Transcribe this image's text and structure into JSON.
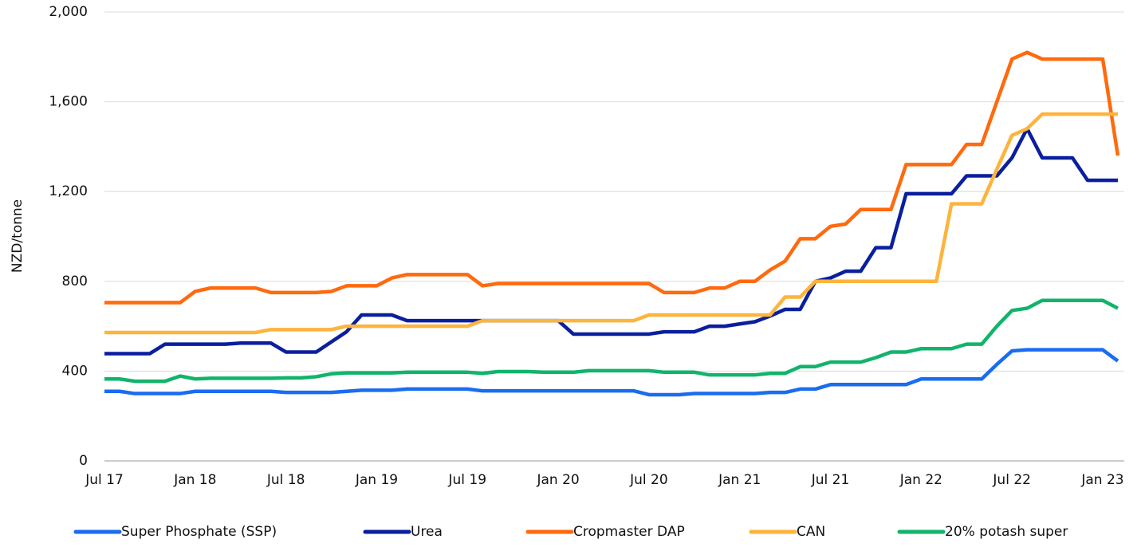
{
  "chart_data": {
    "type": "line",
    "y_label": "NZD/tonne",
    "categories": [
      "Jul 17",
      null,
      null,
      null,
      null,
      null,
      "Jan 18",
      null,
      null,
      null,
      null,
      null,
      "Jul 18",
      null,
      null,
      null,
      null,
      null,
      "Jan 19",
      null,
      null,
      null,
      null,
      null,
      "Jul 19",
      null,
      null,
      null,
      null,
      null,
      "Jan 20",
      null,
      null,
      null,
      null,
      null,
      "Jul 20",
      null,
      null,
      null,
      null,
      null,
      "Jan 21",
      null,
      null,
      null,
      null,
      null,
      "Jul 21",
      null,
      null,
      null,
      null,
      null,
      "Jan 22",
      null,
      null,
      null,
      null,
      null,
      "Jul 22",
      null,
      null,
      null,
      null,
      null,
      "Jan 23",
      null
    ],
    "series": [
      {
        "name": "Super Phosphate (SSP)",
        "color": "#1a6cf0",
        "values": [
          310,
          310,
          300,
          300,
          300,
          300,
          310,
          310,
          310,
          310,
          310,
          310,
          305,
          305,
          305,
          305,
          310,
          315,
          315,
          315,
          320,
          320,
          320,
          320,
          320,
          312,
          312,
          312,
          312,
          312,
          312,
          312,
          312,
          312,
          312,
          312,
          295,
          295,
          295,
          300,
          300,
          300,
          300,
          300,
          305,
          305,
          320,
          320,
          340,
          340,
          340,
          340,
          340,
          340,
          365,
          365,
          365,
          365,
          365,
          430,
          490,
          495,
          495,
          495,
          495,
          495,
          495,
          445
        ]
      },
      {
        "name": "Urea",
        "color": "#0a1f9e",
        "values": [
          478,
          478,
          478,
          478,
          520,
          520,
          520,
          520,
          520,
          525,
          525,
          525,
          485,
          485,
          485,
          530,
          575,
          650,
          650,
          650,
          625,
          625,
          625,
          625,
          625,
          625,
          625,
          625,
          625,
          625,
          625,
          565,
          565,
          565,
          565,
          565,
          565,
          575,
          575,
          575,
          600,
          600,
          610,
          620,
          645,
          675,
          675,
          800,
          815,
          845,
          845,
          950,
          950,
          1190,
          1190,
          1190,
          1190,
          1270,
          1270,
          1270,
          1350,
          1480,
          1350,
          1350,
          1350,
          1250,
          1250,
          1250
        ]
      },
      {
        "name": "Cropmaster DAP",
        "color": "#ff6a0e",
        "values": [
          705,
          705,
          705,
          705,
          705,
          705,
          755,
          770,
          770,
          770,
          770,
          750,
          750,
          750,
          750,
          755,
          780,
          780,
          780,
          815,
          830,
          830,
          830,
          830,
          830,
          780,
          790,
          790,
          790,
          790,
          790,
          790,
          790,
          790,
          790,
          790,
          790,
          750,
          750,
          750,
          770,
          770,
          800,
          800,
          850,
          890,
          990,
          990,
          1045,
          1055,
          1120,
          1120,
          1120,
          1320,
          1320,
          1320,
          1320,
          1410,
          1410,
          1600,
          1790,
          1820,
          1790,
          1790,
          1790,
          1790,
          1790,
          1360
        ]
      },
      {
        "name": "CAN",
        "color": "#fdb43c",
        "values": [
          572,
          572,
          572,
          572,
          572,
          572,
          572,
          572,
          572,
          572,
          572,
          585,
          585,
          585,
          585,
          585,
          600,
          600,
          600,
          600,
          600,
          600,
          600,
          600,
          600,
          625,
          625,
          625,
          625,
          625,
          625,
          625,
          625,
          625,
          625,
          625,
          650,
          650,
          650,
          650,
          650,
          650,
          650,
          650,
          650,
          730,
          730,
          800,
          800,
          800,
          800,
          800,
          800,
          800,
          800,
          800,
          1145,
          1145,
          1145,
          1300,
          1450,
          1480,
          1545,
          1545,
          1545,
          1545,
          1545,
          1545
        ]
      },
      {
        "name": "20% potash super",
        "color": "#11b46a",
        "values": [
          365,
          365,
          355,
          355,
          355,
          378,
          365,
          368,
          368,
          368,
          368,
          368,
          370,
          370,
          375,
          388,
          392,
          392,
          392,
          392,
          395,
          395,
          395,
          395,
          395,
          390,
          398,
          398,
          398,
          395,
          395,
          395,
          402,
          402,
          402,
          402,
          402,
          395,
          395,
          395,
          383,
          383,
          383,
          383,
          390,
          390,
          420,
          420,
          440,
          440,
          440,
          460,
          485,
          485,
          500,
          500,
          500,
          520,
          520,
          600,
          670,
          680,
          715,
          715,
          715,
          715,
          715,
          680
        ]
      }
    ],
    "ylim": [
      0,
      2000
    ],
    "yticks": [
      0,
      400,
      {
        "value": 800,
        "label": "800"
      },
      {
        "value": 1200,
        "label": "1,200"
      },
      {
        "value": 1600,
        "label": "1,600"
      },
      {
        "value": 2000,
        "label": "2,000"
      }
    ],
    "grid": true,
    "legend": "bottom"
  }
}
